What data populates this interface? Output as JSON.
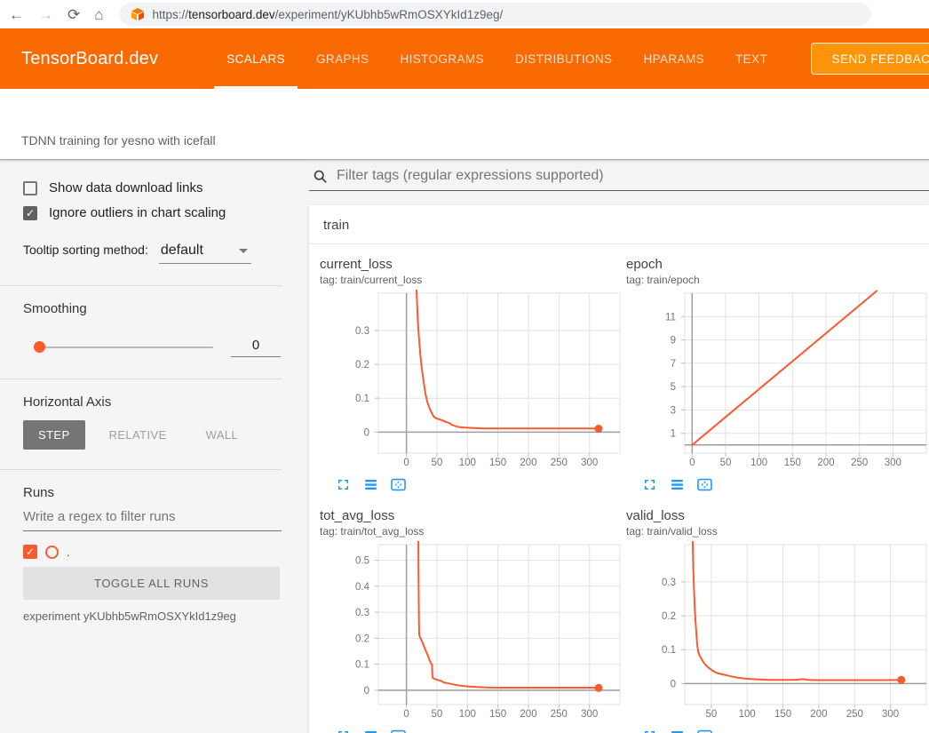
{
  "browser": {
    "url_scheme": "https://",
    "url_host": "tensorboard.dev",
    "url_path": "/experiment/yKUbhb5wRmOSXYkId1z9eg/"
  },
  "header": {
    "brand": "TensorBoard.dev",
    "tabs": [
      {
        "label": "SCALARS",
        "active": true
      },
      {
        "label": "GRAPHS",
        "active": false
      },
      {
        "label": "HISTOGRAMS",
        "active": false
      },
      {
        "label": "DISTRIBUTIONS",
        "active": false
      },
      {
        "label": "HPARAMS",
        "active": false
      },
      {
        "label": "TEXT",
        "active": false
      }
    ],
    "feedback_label": "SEND FEEDBACK"
  },
  "experiment": {
    "title": "TDNN training for yesno with icefall"
  },
  "sidebar": {
    "show_download": {
      "label": "Show data download links",
      "checked": false
    },
    "ignore_outliers": {
      "label": "Ignore outliers in chart scaling",
      "checked": true
    },
    "tooltip_sorting": {
      "label": "Tooltip sorting method:",
      "value": "default"
    },
    "smoothing": {
      "label": "Smoothing",
      "value": "0"
    },
    "horizontal_axis": {
      "label": "Horizontal Axis",
      "options": [
        "STEP",
        "RELATIVE",
        "WALL"
      ],
      "selected": "STEP"
    },
    "runs": {
      "label": "Runs",
      "filter_placeholder": "Write a regex to filter runs",
      "run_name": ".",
      "run_checked": true,
      "toggle_button": "TOGGLE ALL RUNS",
      "experiment_label": "experiment yKUbhb5wRmOSXYkId1z9eg"
    }
  },
  "main": {
    "filter_placeholder": "Filter tags (regular expressions supported)",
    "section": "train"
  },
  "colors": {
    "header_bg": "#FA6A02",
    "feedback_bg": "#FD9409",
    "run_color": "#FA5A2E",
    "icon_blue": "#2196F3"
  },
  "chart_data": [
    {
      "type": "line",
      "title": "current_loss",
      "tag_label": "tag: train/current_loss",
      "xlabel": "step",
      "xlim": [
        -46,
        350
      ],
      "ylim": [
        -0.062,
        0.41
      ],
      "xticks": [
        0,
        50,
        100,
        150,
        200,
        250,
        300
      ],
      "yticks": [
        0,
        0.1,
        0.2,
        0.3
      ],
      "series": [
        {
          "name": ".",
          "color": "#FA5A2E",
          "end_marker": true,
          "points": [
            [
              14,
              0.55
            ],
            [
              17,
              0.4
            ],
            [
              19,
              0.32
            ],
            [
              21,
              0.27
            ],
            [
              23,
              0.225
            ],
            [
              25,
              0.19
            ],
            [
              27,
              0.165
            ],
            [
              29,
              0.14
            ],
            [
              31,
              0.115
            ],
            [
              33,
              0.098
            ],
            [
              35,
              0.085
            ],
            [
              38,
              0.07
            ],
            [
              41,
              0.058
            ],
            [
              44,
              0.048
            ],
            [
              47,
              0.042
            ],
            [
              50,
              0.04
            ],
            [
              55,
              0.037
            ],
            [
              60,
              0.034
            ],
            [
              65,
              0.03
            ],
            [
              70,
              0.027
            ],
            [
              74,
              0.022
            ],
            [
              78,
              0.019
            ],
            [
              84,
              0.016
            ],
            [
              90,
              0.014
            ],
            [
              100,
              0.013
            ],
            [
              110,
              0.012
            ],
            [
              125,
              0.011
            ],
            [
              140,
              0.011
            ],
            [
              160,
              0.011
            ],
            [
              180,
              0.011
            ],
            [
              200,
              0.011
            ],
            [
              220,
              0.011
            ],
            [
              240,
              0.011
            ],
            [
              260,
              0.011
            ],
            [
              280,
              0.011
            ],
            [
              300,
              0.011
            ],
            [
              315,
              0.01
            ]
          ]
        }
      ]
    },
    {
      "type": "line",
      "title": "epoch",
      "tag_label": "tag: train/epoch",
      "xlabel": "step",
      "xlim": [
        -11,
        350
      ],
      "ylim": [
        -0.7,
        13.0
      ],
      "xticks": [
        0,
        50,
        100,
        150,
        200,
        250,
        300
      ],
      "yticks": [
        1,
        3,
        5,
        7,
        9,
        11
      ],
      "series": [
        {
          "name": ".",
          "color": "#FA5A2E",
          "end_marker": false,
          "points": [
            [
              0,
              0
            ],
            [
              276,
              13.2
            ]
          ]
        }
      ]
    },
    {
      "type": "line",
      "title": "tot_avg_loss",
      "tag_label": "tag: train/tot_avg_loss",
      "xlabel": "step",
      "xlim": [
        -46,
        350
      ],
      "ylim": [
        -0.055,
        0.56
      ],
      "xticks": [
        0,
        50,
        100,
        150,
        200,
        250,
        300
      ],
      "yticks": [
        0,
        0.1,
        0.2,
        0.3,
        0.4,
        0.5
      ],
      "series": [
        {
          "name": ".",
          "color": "#FA5A2E",
          "end_marker": true,
          "points": [
            [
              19.5,
              0.62
            ],
            [
              20,
              0.42
            ],
            [
              20.5,
              0.27
            ],
            [
              21,
              0.215
            ],
            [
              23,
              0.2
            ],
            [
              26,
              0.185
            ],
            [
              29,
              0.168
            ],
            [
              32,
              0.15
            ],
            [
              35,
              0.135
            ],
            [
              38,
              0.115
            ],
            [
              40,
              0.105
            ],
            [
              42,
              0.098
            ],
            [
              42.5,
              0.06
            ],
            [
              43,
              0.048
            ],
            [
              46,
              0.044
            ],
            [
              50,
              0.041
            ],
            [
              54,
              0.038
            ],
            [
              58,
              0.035
            ],
            [
              61,
              0.03
            ],
            [
              65,
              0.028
            ],
            [
              70,
              0.026
            ],
            [
              76,
              0.023
            ],
            [
              82,
              0.02
            ],
            [
              88,
              0.018
            ],
            [
              95,
              0.016
            ],
            [
              105,
              0.014
            ],
            [
              118,
              0.012
            ],
            [
              132,
              0.011
            ],
            [
              150,
              0.01
            ],
            [
              170,
              0.01
            ],
            [
              190,
              0.01
            ],
            [
              210,
              0.01
            ],
            [
              230,
              0.01
            ],
            [
              250,
              0.01
            ],
            [
              270,
              0.01
            ],
            [
              290,
              0.01
            ],
            [
              305,
              0.01
            ],
            [
              315,
              0.009
            ]
          ]
        }
      ]
    },
    {
      "type": "line",
      "title": "valid_loss",
      "tag_label": "tag: train/valid_loss",
      "xlabel": "step",
      "xlim": [
        13,
        350
      ],
      "ylim": [
        -0.062,
        0.41
      ],
      "xticks": [
        50,
        100,
        150,
        200,
        250,
        300
      ],
      "yticks": [
        0,
        0.1,
        0.2,
        0.3
      ],
      "series": [
        {
          "name": ".",
          "color": "#FA5A2E",
          "end_marker": true,
          "points": [
            [
              23,
              0.55
            ],
            [
              24,
              0.42
            ],
            [
              25,
              0.33
            ],
            [
              26,
              0.27
            ],
            [
              27,
              0.22
            ],
            [
              28,
              0.185
            ],
            [
              29,
              0.155
            ],
            [
              30,
              0.125
            ],
            [
              31,
              0.105
            ],
            [
              32,
              0.092
            ],
            [
              34,
              0.082
            ],
            [
              37,
              0.07
            ],
            [
              40,
              0.06
            ],
            [
              44,
              0.051
            ],
            [
              48,
              0.044
            ],
            [
              52,
              0.038
            ],
            [
              56,
              0.033
            ],
            [
              60,
              0.03
            ],
            [
              66,
              0.027
            ],
            [
              72,
              0.024
            ],
            [
              80,
              0.02
            ],
            [
              88,
              0.017
            ],
            [
              96,
              0.015
            ],
            [
              106,
              0.0135
            ],
            [
              118,
              0.012
            ],
            [
              132,
              0.011
            ],
            [
              146,
              0.011
            ],
            [
              160,
              0.011
            ],
            [
              170,
              0.0115
            ],
            [
              178,
              0.013
            ],
            [
              186,
              0.011
            ],
            [
              196,
              0.01
            ],
            [
              215,
              0.01
            ],
            [
              235,
              0.01
            ],
            [
              255,
              0.01
            ],
            [
              275,
              0.01
            ],
            [
              295,
              0.01
            ],
            [
              315,
              0.011
            ]
          ]
        }
      ]
    }
  ]
}
